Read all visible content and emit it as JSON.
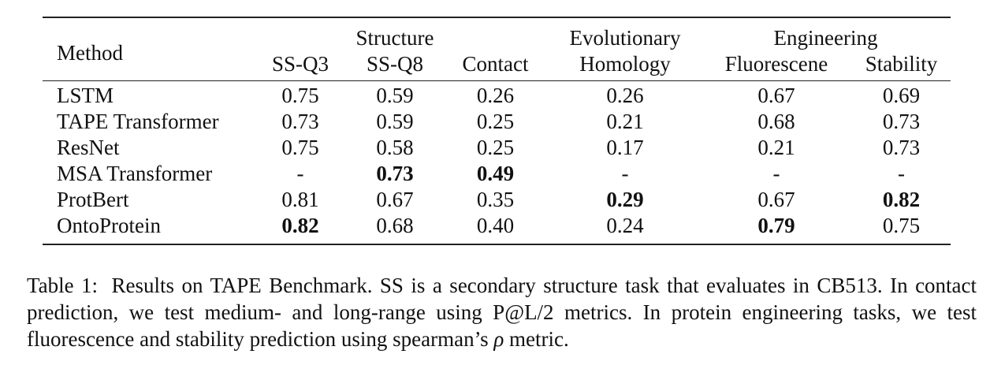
{
  "table": {
    "groups": {
      "structure": "Structure",
      "evolutionary": "Evolutionary",
      "engineering": "Engineering"
    },
    "columns": {
      "method": "Method",
      "ssq3": "SS-Q3",
      "ssq8": "SS-Q8",
      "contact": "Contact",
      "homology": "Homology",
      "fluorescene": "Fluorescene",
      "stability": "Stability"
    },
    "rows": [
      {
        "method": "LSTM",
        "values": [
          "0.75",
          "0.59",
          "0.26",
          "0.26",
          "0.67",
          "0.69"
        ],
        "bold": [
          false,
          false,
          false,
          false,
          false,
          false
        ]
      },
      {
        "method": "TAPE Transformer",
        "values": [
          "0.73",
          "0.59",
          "0.25",
          "0.21",
          "0.68",
          "0.73"
        ],
        "bold": [
          false,
          false,
          false,
          false,
          false,
          false
        ]
      },
      {
        "method": "ResNet",
        "values": [
          "0.75",
          "0.58",
          "0.25",
          "0.17",
          "0.21",
          "0.73"
        ],
        "bold": [
          false,
          false,
          false,
          false,
          false,
          false
        ]
      },
      {
        "method": "MSA Transformer",
        "values": [
          "-",
          "0.73",
          "0.49",
          "-",
          "-",
          "-"
        ],
        "bold": [
          false,
          true,
          true,
          false,
          false,
          false
        ]
      },
      {
        "method": "ProtBert",
        "values": [
          "0.81",
          "0.67",
          "0.35",
          "0.29",
          "0.67",
          "0.82"
        ],
        "bold": [
          false,
          false,
          false,
          true,
          false,
          true
        ]
      },
      {
        "method": "OntoProtein",
        "values": [
          "0.82",
          "0.68",
          "0.40",
          "0.24",
          "0.79",
          "0.75"
        ],
        "bold": [
          true,
          false,
          false,
          false,
          true,
          false
        ]
      }
    ]
  },
  "caption": {
    "label": "Table 1:",
    "text_part1": "Results on TAPE Benchmark. SS is a secondary structure task that evaluates in CB513. In contact prediction, we test medium- and long-range using P@L/2 metrics. In protein engineering tasks, we test fluorescence and stability prediction using spearman’s ",
    "symbol": "ρ",
    "text_part2": " metric."
  }
}
